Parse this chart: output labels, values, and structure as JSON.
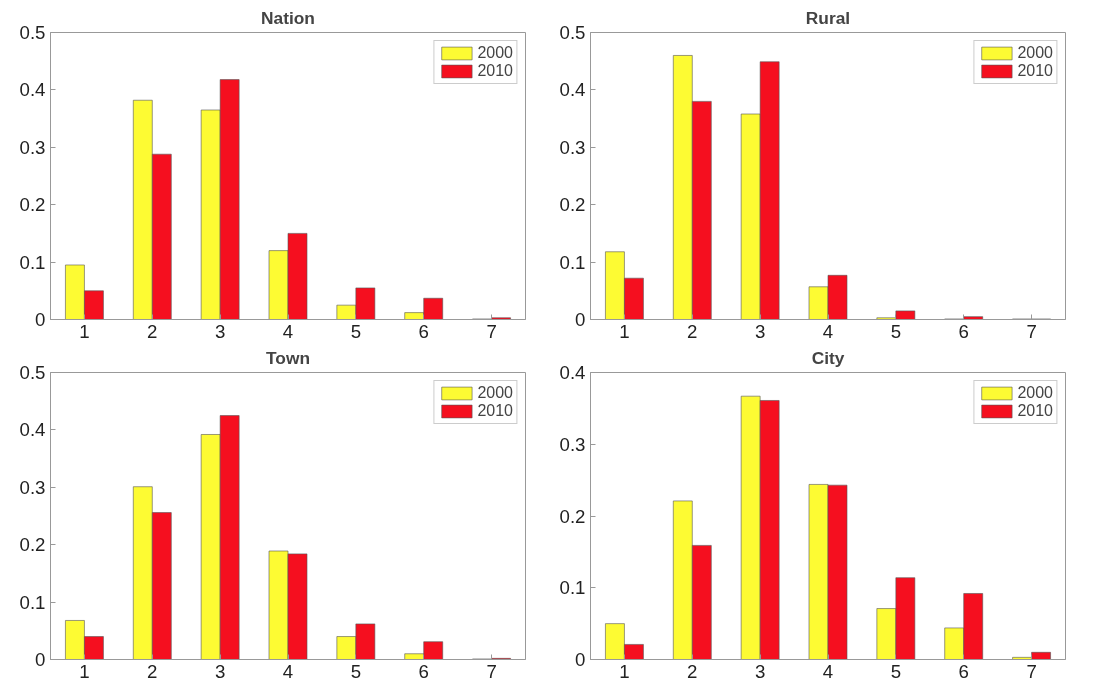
{
  "chart_data": [
    {
      "type": "bar",
      "title": "Nation",
      "categories": [
        "1",
        "2",
        "3",
        "4",
        "5",
        "6",
        "7"
      ],
      "ylim": [
        0,
        0.5
      ],
      "yticks": [
        0,
        0.1,
        0.2,
        0.3,
        0.4,
        0.5
      ],
      "grid": false,
      "legend": "top right",
      "series": [
        {
          "name": "2000",
          "color": "#fdfb33",
          "values": [
            0.095,
            0.382,
            0.365,
            0.12,
            0.025,
            0.012,
            0.001
          ]
        },
        {
          "name": "2010",
          "color": "#f50f1f",
          "values": [
            0.05,
            0.288,
            0.418,
            0.15,
            0.055,
            0.037,
            0.003
          ]
        }
      ]
    },
    {
      "type": "bar",
      "title": "Rural",
      "categories": [
        "1",
        "2",
        "3",
        "4",
        "5",
        "6",
        "7"
      ],
      "ylim": [
        0,
        0.5
      ],
      "yticks": [
        0,
        0.1,
        0.2,
        0.3,
        0.4,
        0.5
      ],
      "grid": false,
      "legend": "top right",
      "series": [
        {
          "name": "2000",
          "color": "#fdfb33",
          "values": [
            0.118,
            0.46,
            0.358,
            0.057,
            0.003,
            0.001,
            0.001
          ]
        },
        {
          "name": "2010",
          "color": "#f50f1f",
          "values": [
            0.072,
            0.38,
            0.449,
            0.077,
            0.015,
            0.005,
            0.001
          ]
        }
      ]
    },
    {
      "type": "bar",
      "title": "Town",
      "categories": [
        "1",
        "2",
        "3",
        "4",
        "5",
        "6",
        "7"
      ],
      "ylim": [
        0,
        0.5
      ],
      "yticks": [
        0,
        0.1,
        0.2,
        0.3,
        0.4,
        0.5
      ],
      "grid": false,
      "legend": "top right",
      "series": [
        {
          "name": "2000",
          "color": "#fdfb33",
          "values": [
            0.068,
            0.301,
            0.392,
            0.189,
            0.04,
            0.01,
            0.001
          ]
        },
        {
          "name": "2010",
          "color": "#f50f1f",
          "values": [
            0.04,
            0.256,
            0.425,
            0.184,
            0.062,
            0.031,
            0.002
          ]
        }
      ]
    },
    {
      "type": "bar",
      "title": "City",
      "categories": [
        "1",
        "2",
        "3",
        "4",
        "5",
        "6",
        "7"
      ],
      "ylim": [
        0,
        0.4
      ],
      "yticks": [
        0,
        0.1,
        0.2,
        0.3,
        0.4
      ],
      "grid": false,
      "legend": "top right",
      "series": [
        {
          "name": "2000",
          "color": "#fdfb33",
          "values": [
            0.05,
            0.221,
            0.367,
            0.244,
            0.071,
            0.044,
            0.003
          ]
        },
        {
          "name": "2010",
          "color": "#f50f1f",
          "values": [
            0.021,
            0.159,
            0.361,
            0.243,
            0.114,
            0.092,
            0.01
          ]
        }
      ]
    }
  ]
}
